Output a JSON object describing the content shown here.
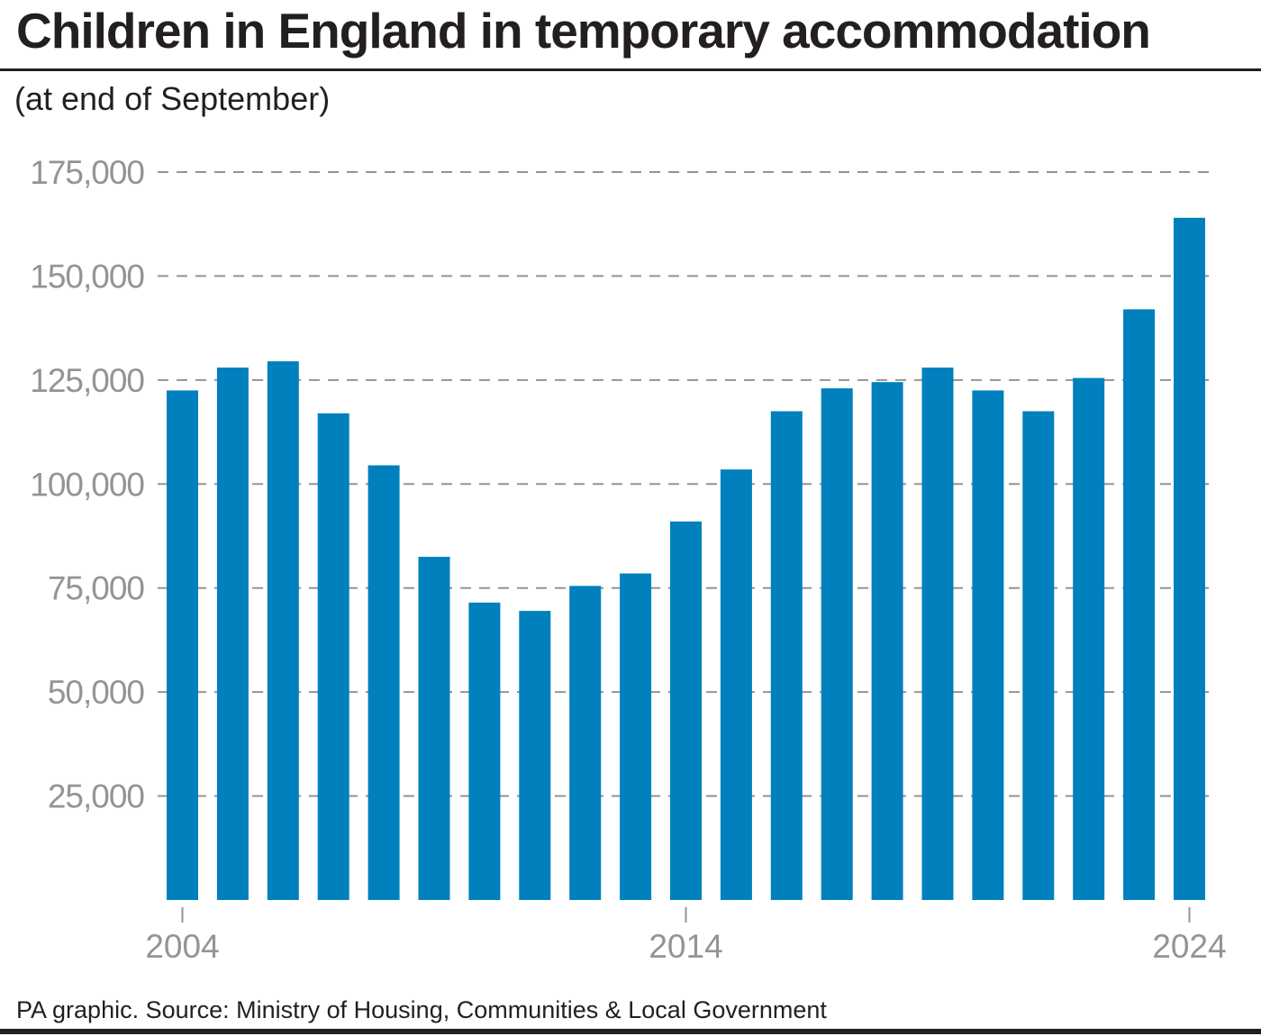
{
  "header": {
    "title": "Children in England in temporary accommodation",
    "subtitle": "(at end of September)"
  },
  "footer": {
    "source": "PA graphic. Source: Ministry of Housing, Communities & Local Government"
  },
  "colors": {
    "bar": "#0080bd",
    "grid": "#929496",
    "text": "#231f20",
    "tick_text": "#929496"
  },
  "chart_data": {
    "type": "bar",
    "title": "Children in England in temporary accommodation",
    "subtitle": "(at end of September)",
    "xlabel": "",
    "ylabel": "",
    "categories": [
      2004,
      2005,
      2006,
      2007,
      2008,
      2009,
      2010,
      2011,
      2012,
      2013,
      2014,
      2015,
      2016,
      2017,
      2018,
      2019,
      2020,
      2021,
      2022,
      2023,
      2024
    ],
    "values": [
      122500,
      128000,
      129500,
      117000,
      104500,
      82500,
      71500,
      69500,
      75500,
      78500,
      91000,
      103500,
      117500,
      123000,
      124500,
      128000,
      122500,
      117500,
      125500,
      142000,
      164000
    ],
    "ylim": [
      0,
      175000
    ],
    "y_ticks": [
      25000,
      50000,
      75000,
      100000,
      125000,
      150000,
      175000
    ],
    "y_tick_labels": [
      "25,000",
      "50,000",
      "75,000",
      "100,000",
      "125,000",
      "150,000",
      "175,000"
    ],
    "x_tick_labels": [
      "2004",
      "2014",
      "2024"
    ],
    "x_tick_years": [
      2004,
      2014,
      2024
    ],
    "grid": true,
    "grid_style": "dashed",
    "legend": "none"
  }
}
